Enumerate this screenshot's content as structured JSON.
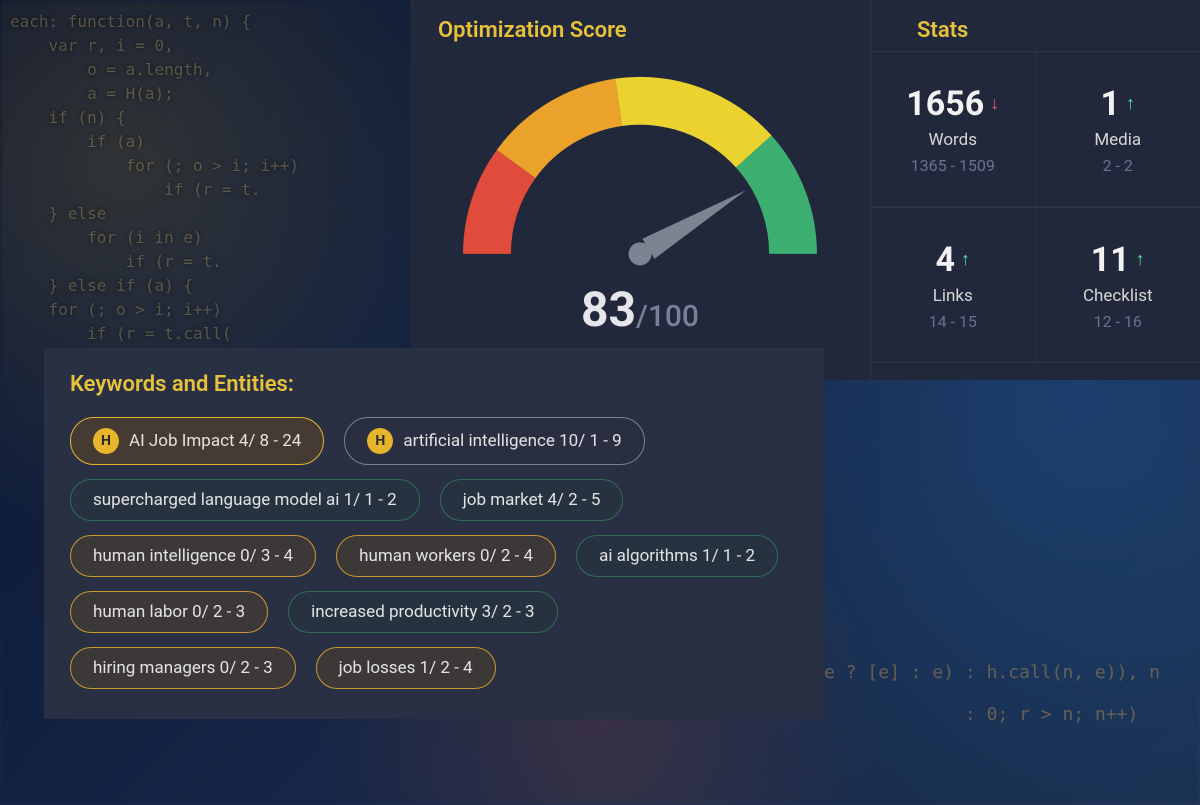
{
  "background": {
    "gradient_colors": [
      "#0a1530",
      "#152545",
      "#1a3050"
    ],
    "code_snippet": "each: function(a, t, n) {\n    var r, i = 0,\n        o = a.length,\n        a = H(a);\n    if (n) {\n        if (a)\n            for (; o > i; i++)\n                if (r = t.\n    } else\n        for (i in e)\n            if (r = t.\n    } else if (a) {\n    for (; o > i; i++)\n        if (r = t.call(\n    } else",
    "code_snippet2": "eof e ? [e] : e) : h.call(n, e)), n\n\n                 : 0; r > n; n++)"
  },
  "optimization": {
    "title": "Optimization Score",
    "score": 83,
    "max": 100,
    "gauge": {
      "segments": [
        {
          "color": "#e14b3b",
          "start_deg": 180,
          "end_deg": 216
        },
        {
          "color": "#eaa22a",
          "start_deg": 216,
          "end_deg": 262
        },
        {
          "color": "#ead22f",
          "start_deg": 262,
          "end_deg": 318
        },
        {
          "color": "#3cae70",
          "start_deg": 318,
          "end_deg": 360
        }
      ],
      "needle_angle_deg": 329,
      "needle_color": "#7e8391",
      "thickness": 50
    }
  },
  "stats": {
    "title": "Stats",
    "items": [
      {
        "value": "1656",
        "trend": "down",
        "label": "Words",
        "range": "1365 - 1509"
      },
      {
        "value": "1",
        "trend": "up",
        "label": "Media",
        "range": "2 - 2"
      },
      {
        "value": "4",
        "trend": "up",
        "label": "Links",
        "range": "14 - 15"
      },
      {
        "value": "11",
        "trend": "up",
        "label": "Checklist",
        "range": "12 - 16"
      }
    ]
  },
  "keywords": {
    "title": "Keywords and Entities:",
    "pills": [
      {
        "text": "AI Job Impact 4/ 8 - 24",
        "badge": "H",
        "style": "amber-strong"
      },
      {
        "text": "artificial intelligence 10/ 1 - 9",
        "badge": "H",
        "style": "gray"
      },
      {
        "text": "supercharged language model ai 1/ 1 - 2",
        "style": "green"
      },
      {
        "text": "job market 4/ 2 - 5",
        "style": "green"
      },
      {
        "text": "human intelligence 0/ 3 - 4",
        "style": "amber"
      },
      {
        "text": "human workers 0/ 2 - 4",
        "style": "amber"
      },
      {
        "text": "ai algorithms 1/ 1 - 2",
        "style": "green"
      },
      {
        "text": "human labor 0/ 2 - 3",
        "style": "amber"
      },
      {
        "text": "increased productivity 3/ 2 - 3",
        "style": "green"
      },
      {
        "text": "hiring managers 0/ 2 - 3",
        "style": "amber"
      },
      {
        "text": "job losses 1/ 2 - 4",
        "style": "amber"
      }
    ]
  },
  "colors": {
    "panel_bg": "#22283b",
    "keywords_bg": "#2a3044",
    "title_accent": "#e6c23a",
    "text": "#e6e6ea",
    "muted": "#7a8096"
  }
}
